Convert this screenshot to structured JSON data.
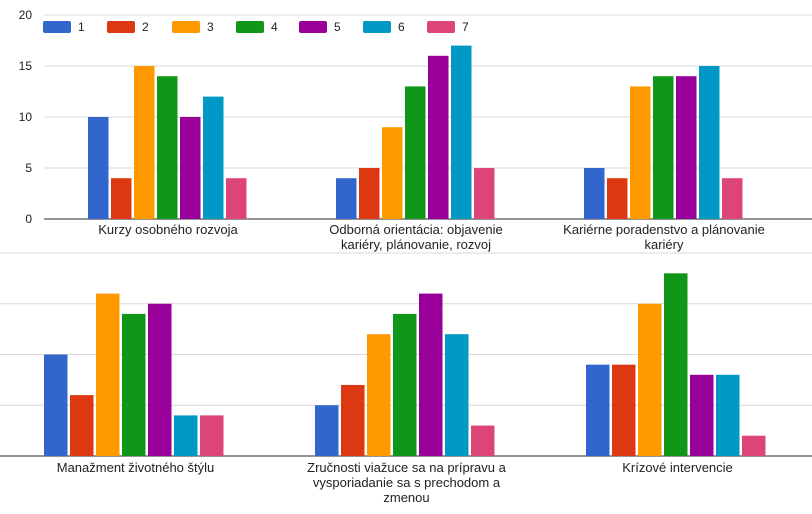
{
  "chart_data": [
    {
      "type": "bar",
      "categories": [
        "Kurzy osobného rozvoja",
        "Odborná orientácia: objavenie kariéry, plánovanie, rozvoj",
        "Kariérne poradenstvo a plánovanie kariéry"
      ],
      "series": [
        {
          "name": "1",
          "values": [
            10,
            4,
            5
          ]
        },
        {
          "name": "2",
          "values": [
            4,
            5,
            4
          ]
        },
        {
          "name": "3",
          "values": [
            15,
            9,
            13
          ]
        },
        {
          "name": "4",
          "values": [
            14,
            13,
            14
          ]
        },
        {
          "name": "5",
          "values": [
            10,
            16,
            14
          ]
        },
        {
          "name": "6",
          "values": [
            12,
            17,
            15
          ]
        },
        {
          "name": "7",
          "values": [
            4,
            5,
            4
          ]
        }
      ],
      "ylim": [
        0,
        20
      ],
      "yticks": [
        0,
        5,
        10,
        15,
        20
      ],
      "grid": true,
      "legend": "top-left"
    },
    {
      "type": "bar",
      "categories": [
        "Manažment životného štýlu",
        "Zručnosti viažuce sa na prípravu a vysporiadanie sa s prechodom a zmenou",
        "Krízové intervencie"
      ],
      "series": [
        {
          "name": "1",
          "values": [
            10,
            5,
            9
          ]
        },
        {
          "name": "2",
          "values": [
            6,
            7,
            9
          ]
        },
        {
          "name": "3",
          "values": [
            16,
            12,
            15
          ]
        },
        {
          "name": "4",
          "values": [
            14,
            14,
            18
          ]
        },
        {
          "name": "5",
          "values": [
            15,
            16,
            8
          ]
        },
        {
          "name": "6",
          "values": [
            4,
            12,
            8
          ]
        },
        {
          "name": "7",
          "values": [
            4,
            3,
            2
          ]
        }
      ],
      "ylim": [
        0,
        20
      ],
      "grid": true
    }
  ],
  "colors": [
    "#3366cc",
    "#dc3912",
    "#ff9900",
    "#109618",
    "#990099",
    "#0099c6",
    "#dd4477"
  ],
  "category_lines": [
    [
      [
        "Kurzy osobného rozvoja"
      ],
      [
        "Odborná orientácia: objavenie",
        "kariéry, plánovanie, rozvoj"
      ],
      [
        "Kariérne poradenstvo a plánovanie",
        "kariéry"
      ]
    ],
    [
      [
        "Manažment životného štýlu"
      ],
      [
        "Zručnosti viažuce sa na prípravu a",
        "vysporiadanie sa s prechodom a",
        "zmenou"
      ],
      [
        "Krízové intervencie"
      ]
    ]
  ]
}
